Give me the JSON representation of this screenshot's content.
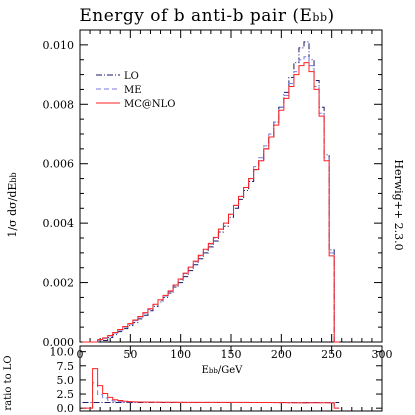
{
  "chart_data": {
    "type": "line",
    "title": "Energy of b anti-b pair (E",
    "title_sub": "bb",
    "title_end": ")",
    "ylabel_main": "1/σ dσ/dE",
    "ylabel_sub": "bb",
    "xlabel_main": "E",
    "xlabel_sub": "bb",
    "xlabel_end": "/GeV",
    "ylabel_ratio": "ratio to LO",
    "side_text": "Herwig++ 2.3.0",
    "xlim": [
      0,
      300
    ],
    "ylim": [
      0,
      0.0105
    ],
    "ratio_ylim": [
      -0.5,
      11
    ],
    "x_ticks": [
      "0",
      "50",
      "100",
      "150",
      "200",
      "250",
      "300"
    ],
    "y_ticks": [
      "0.000",
      "0.002",
      "0.004",
      "0.006",
      "0.008",
      "0.010"
    ],
    "ratio_ticks": [
      "0.0",
      "2.5",
      "5.0",
      "7.5",
      "10.0"
    ],
    "legend_position": "top-left",
    "x": [
      5,
      10,
      15,
      20,
      25,
      30,
      35,
      40,
      45,
      50,
      55,
      60,
      65,
      70,
      75,
      80,
      85,
      90,
      95,
      100,
      105,
      110,
      115,
      120,
      125,
      130,
      135,
      140,
      145,
      150,
      155,
      160,
      165,
      170,
      175,
      180,
      185,
      190,
      195,
      200,
      205,
      210,
      215,
      220,
      225,
      230,
      235,
      240,
      245,
      250,
      255
    ],
    "series": [
      {
        "name": "LO",
        "color": "#1a1a66",
        "dash": "dashdot",
        "values": [
          0,
          0,
          0,
          0,
          5e-05,
          0.00015,
          0.00025,
          0.00035,
          0.00045,
          0.00055,
          0.00065,
          0.00078,
          0.0009,
          0.00105,
          0.0012,
          0.00135,
          0.0015,
          0.00165,
          0.00185,
          0.002,
          0.0022,
          0.0024,
          0.0026,
          0.0028,
          0.003,
          0.0032,
          0.0034,
          0.0037,
          0.0039,
          0.0042,
          0.0045,
          0.0048,
          0.0051,
          0.0054,
          0.0058,
          0.0061,
          0.0065,
          0.0069,
          0.0074,
          0.0079,
          0.0084,
          0.0089,
          0.0094,
          0.0099,
          0.0101,
          0.0095,
          0.0088,
          0.0079,
          0.0063,
          0.0031,
          0
        ]
      },
      {
        "name": "ME",
        "color": "#7a7ae0",
        "dash": "dashed",
        "values": [
          0,
          0,
          0,
          6e-05,
          0.00012,
          0.0002,
          0.0003,
          0.0004,
          0.0005,
          0.0006,
          0.00072,
          0.00084,
          0.00097,
          0.0011,
          0.00125,
          0.0014,
          0.00155,
          0.0017,
          0.0019,
          0.0021,
          0.0023,
          0.0025,
          0.0027,
          0.0029,
          0.0031,
          0.0033,
          0.0035,
          0.0038,
          0.004,
          0.0043,
          0.0046,
          0.0049,
          0.0052,
          0.0055,
          0.0059,
          0.0062,
          0.0066,
          0.007,
          0.0074,
          0.0079,
          0.0083,
          0.0087,
          0.0091,
          0.0095,
          0.0096,
          0.0093,
          0.0086,
          0.0077,
          0.0062,
          0.003,
          0
        ]
      },
      {
        "name": "MC@NLO",
        "color": "#ff2222",
        "dash": "solid",
        "values": [
          0,
          0,
          0,
          8e-05,
          0.00014,
          0.00022,
          0.00032,
          0.00042,
          0.00052,
          0.00062,
          0.00074,
          0.00086,
          0.00099,
          0.00112,
          0.00127,
          0.00142,
          0.00157,
          0.00172,
          0.00192,
          0.00212,
          0.00232,
          0.00252,
          0.00272,
          0.00292,
          0.00312,
          0.00332,
          0.00352,
          0.0038,
          0.004,
          0.0043,
          0.0046,
          0.0049,
          0.0052,
          0.0055,
          0.0058,
          0.0061,
          0.0065,
          0.0069,
          0.0073,
          0.0078,
          0.0082,
          0.0086,
          0.009,
          0.0093,
          0.0094,
          0.0091,
          0.0085,
          0.0076,
          0.0061,
          0.0029,
          0
        ]
      }
    ],
    "ratio_series": [
      {
        "name": "LO",
        "color": "#1a1a66",
        "dash": "dashdot",
        "values": [
          1,
          1,
          1,
          1,
          1,
          1,
          1,
          1,
          1,
          1,
          1,
          1,
          1,
          1,
          1,
          1,
          1,
          1,
          1,
          1,
          1,
          1,
          1,
          1,
          1,
          1,
          1,
          1,
          1,
          1,
          1,
          1,
          1,
          1,
          1,
          1,
          1,
          1,
          1,
          1,
          1,
          1,
          1,
          1,
          1,
          1,
          1,
          1,
          1,
          1,
          1
        ]
      },
      {
        "name": "ME",
        "color": "#7a7ae0",
        "dash": "dashed",
        "values": [
          0,
          0,
          4.5,
          2.4,
          1.8,
          1.4,
          1.25,
          1.15,
          1.12,
          1.1,
          1.08,
          1.07,
          1.06,
          1.05,
          1.04,
          1.04,
          1.03,
          1.03,
          1.03,
          1.03,
          1.02,
          1.02,
          1.02,
          1.02,
          1.02,
          1.02,
          1.02,
          1.01,
          1.01,
          1.01,
          1.01,
          1.01,
          1.0,
          1.0,
          1.0,
          1.0,
          1.0,
          1.0,
          1.0,
          0.99,
          0.98,
          0.97,
          0.96,
          0.96,
          0.95,
          0.98,
          0.98,
          0.97,
          0.98,
          0.97,
          0
        ]
      },
      {
        "name": "MC@NLO",
        "color": "#ff2222",
        "dash": "solid",
        "values": [
          0,
          0,
          7.0,
          4.0,
          2.6,
          1.9,
          1.5,
          1.35,
          1.22,
          1.15,
          1.12,
          1.1,
          1.09,
          1.07,
          1.06,
          1.05,
          1.05,
          1.04,
          1.04,
          1.04,
          1.03,
          1.03,
          1.03,
          1.03,
          1.03,
          1.03,
          1.03,
          1.03,
          1.02,
          1.02,
          1.02,
          1.02,
          1.02,
          1.01,
          1.0,
          1.0,
          1.0,
          1.0,
          0.99,
          0.99,
          0.98,
          0.97,
          0.96,
          0.94,
          0.93,
          0.96,
          0.97,
          0.96,
          0.97,
          0.94,
          0
        ]
      }
    ]
  }
}
